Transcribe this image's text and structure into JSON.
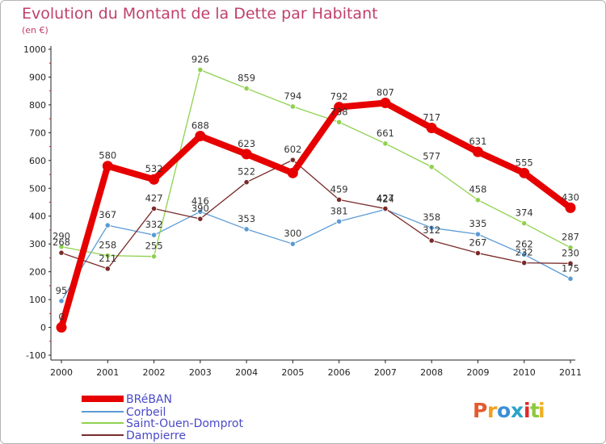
{
  "chart_data": {
    "type": "line",
    "title": "Evolution du Montant de la Dette par Habitant",
    "subtitle": "(en €)",
    "categories": [
      "2000",
      "2001",
      "2002",
      "2003",
      "2004",
      "2005",
      "2006",
      "2007",
      "2008",
      "2009",
      "2010",
      "2011"
    ],
    "ylim": [
      -100,
      1000
    ],
    "yticks": [
      -100,
      0,
      100,
      200,
      300,
      400,
      500,
      600,
      700,
      800,
      900,
      1000
    ],
    "grid": false,
    "legend_position": "bottom-left",
    "series": [
      {
        "name": "BRéBAN",
        "color": "#e60000",
        "values": [
          0,
          580,
          532,
          688,
          623,
          555,
          792,
          807,
          717,
          631,
          555,
          430
        ],
        "labels": [
          "0",
          "580",
          "532",
          "688",
          "623",
          null,
          "792",
          "807",
          "717",
          "631",
          "555",
          "430"
        ]
      },
      {
        "name": "Corbeil",
        "color": "#5b9bd5",
        "values": [
          95,
          367,
          332,
          416,
          353,
          300,
          381,
          424,
          358,
          335,
          262,
          175
        ],
        "labels": [
          "95",
          "367",
          "332",
          "416",
          "353",
          "300",
          "381",
          "424",
          "358",
          "335",
          "262",
          "175"
        ]
      },
      {
        "name": "Saint-Ouen-Domprot",
        "color": "#8fd14f",
        "values": [
          290,
          258,
          255,
          926,
          859,
          794,
          738,
          661,
          577,
          458,
          374,
          287
        ],
        "labels": [
          "290",
          "258",
          "255",
          "926",
          "859",
          "794",
          "738",
          "661",
          "577",
          "458",
          "374",
          "287"
        ]
      },
      {
        "name": "Dampierre",
        "color": "#7a2a2a",
        "values": [
          268,
          211,
          427,
          390,
          522,
          602,
          459,
          427,
          312,
          267,
          232,
          230
        ],
        "labels": [
          "268",
          "211",
          "427",
          "390",
          "522",
          "602",
          "459",
          "427",
          "312",
          "267",
          "232",
          "230"
        ]
      }
    ]
  },
  "logo": {
    "letters": [
      "P",
      "r",
      "o",
      "x",
      "i",
      "t",
      "i"
    ],
    "colors": [
      "#e35b2e",
      "#f0a020",
      "#3a8fd6",
      "#2aa4c8",
      "#e02a2a",
      "#8cc83c",
      "#f0b020"
    ]
  }
}
